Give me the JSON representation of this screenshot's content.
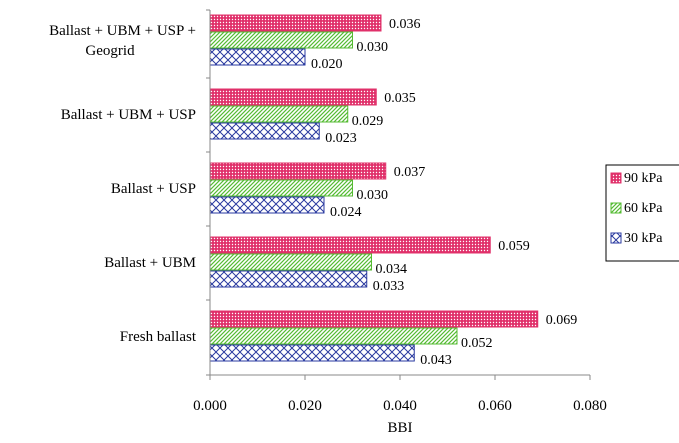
{
  "chart_data": {
    "type": "bar",
    "orientation": "horizontal",
    "xlabel": "BBI",
    "ylabel": "",
    "xlim": [
      0,
      0.08
    ],
    "x_ticks": [
      "0.000",
      "0.020",
      "0.040",
      "0.060",
      "0.080"
    ],
    "x_tick_values": [
      0,
      0.02,
      0.04,
      0.06,
      0.08
    ],
    "grid": false,
    "legend_position": "right",
    "categories": [
      "Ballast + UBM + USP + Geogrid",
      "Ballast + UBM + USP",
      "Ballast + USP",
      "Ballast + UBM",
      "Fresh ballast"
    ],
    "category_display_lines": [
      [
        "Ballast + UBM + USP +",
        "Geogrid"
      ],
      [
        "Ballast + UBM + USP"
      ],
      [
        "Ballast + USP"
      ],
      [
        "Ballast + UBM"
      ],
      [
        "Fresh ballast"
      ]
    ],
    "series": [
      {
        "name": "90 kPa",
        "values": [
          0.036,
          0.035,
          0.037,
          0.059,
          0.069
        ],
        "labels": [
          "0.036",
          "0.035",
          "0.037",
          "0.059",
          "0.069"
        ],
        "color": "#e0306a",
        "pattern": "dots"
      },
      {
        "name": "60 kPa",
        "values": [
          0.03,
          0.029,
          0.03,
          0.034,
          0.052
        ],
        "labels": [
          "0.030",
          "0.029",
          "0.030",
          "0.034",
          "0.052"
        ],
        "color": "#55bb33",
        "pattern": "diagonal"
      },
      {
        "name": "30 kPa",
        "values": [
          0.02,
          0.023,
          0.024,
          0.033,
          0.043
        ],
        "labels": [
          "0.020",
          "0.023",
          "0.024",
          "0.033",
          "0.043"
        ],
        "color": "#2a3aa0",
        "pattern": "crosshatch"
      }
    ]
  }
}
